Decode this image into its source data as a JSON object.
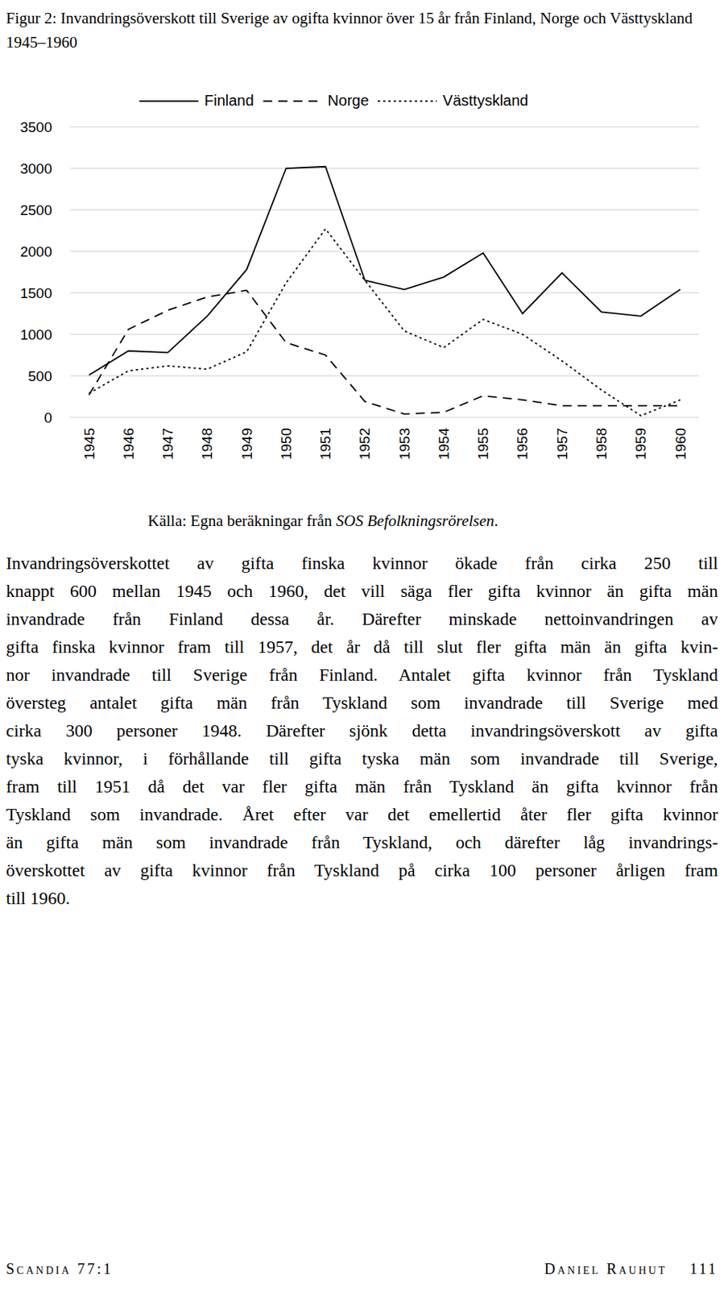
{
  "chart_data": {
    "type": "line",
    "title": "Figur 2: Invandringsöverskott till Sverige av ogifta kvinnor över 15 år från Finland, Norge och Västtyskland 1945–1960",
    "categories": [
      "1945",
      "1946",
      "1947",
      "1948",
      "1949",
      "1950",
      "1951",
      "1952",
      "1953",
      "1954",
      "1955",
      "1956",
      "1957",
      "1958",
      "1959",
      "1960"
    ],
    "series": [
      {
        "name": "Finland",
        "color": "#000000",
        "line_style": "solid",
        "values": [
          510,
          800,
          780,
          1220,
          1780,
          3000,
          3020,
          1650,
          1540,
          1690,
          1980,
          1250,
          1740,
          1270,
          1220,
          1540
        ]
      },
      {
        "name": "Norge",
        "color": "#000000",
        "line_style": "dashed",
        "values": [
          270,
          1060,
          1290,
          1450,
          1530,
          900,
          750,
          190,
          40,
          60,
          260,
          210,
          140,
          140,
          140,
          140
        ]
      },
      {
        "name": "Västtyskland",
        "color": "#000000",
        "line_style": "dotted",
        "values": [
          290,
          560,
          620,
          580,
          790,
          1620,
          2270,
          1650,
          1040,
          840,
          1180,
          1000,
          680,
          330,
          20,
          210
        ]
      }
    ],
    "ylim": [
      0,
      3500
    ],
    "yticks": [
      0,
      500,
      1000,
      1500,
      2000,
      2500,
      3000,
      3500
    ],
    "grid": true,
    "legend": "top"
  },
  "source": [
    "Källa: Egna beräkningar från ",
    "SOS Befolkningsrörelsen",
    "."
  ],
  "paragraph": [
    "Invandringsöverskottet av gifta finska kvinnor ökade från cirka 250 till",
    "knappt 600 mellan 1945 och 1960, det vill säga fler gifta kvinnor än gifta män",
    "invandrade från Finland dessa år. Därefter minskade nettoinvandringen av",
    "gifta finska kvinnor fram till 1957, det år då till slut fler gifta män än gifta kvin-",
    "nor invandrade till Sverige från Finland. Antalet gifta kvinnor från Tyskland",
    "översteg antalet gifta män från Tyskland som invandrade till Sverige med",
    "cirka 300 personer 1948. Därefter sjönk detta invandringsöverskott av gifta",
    "tyska kvinnor, i förhållande till gifta tyska män som invandrade till Sverige,",
    "fram till 1951 då det var fler gifta män från Tyskland än gifta kvinnor från",
    "Tyskland som invandrade. Året efter var det emellertid åter fler gifta kvinnor",
    "än gifta män som invandrade från Tyskland, och därefter låg invandrings-",
    "överskottet av gifta kvinnor från Tyskland på cirka 100 personer årligen fram",
    "till 1960."
  ],
  "footer": {
    "journal": "Scandia 77:1",
    "author": "Daniel Rauhut",
    "page": "111"
  }
}
